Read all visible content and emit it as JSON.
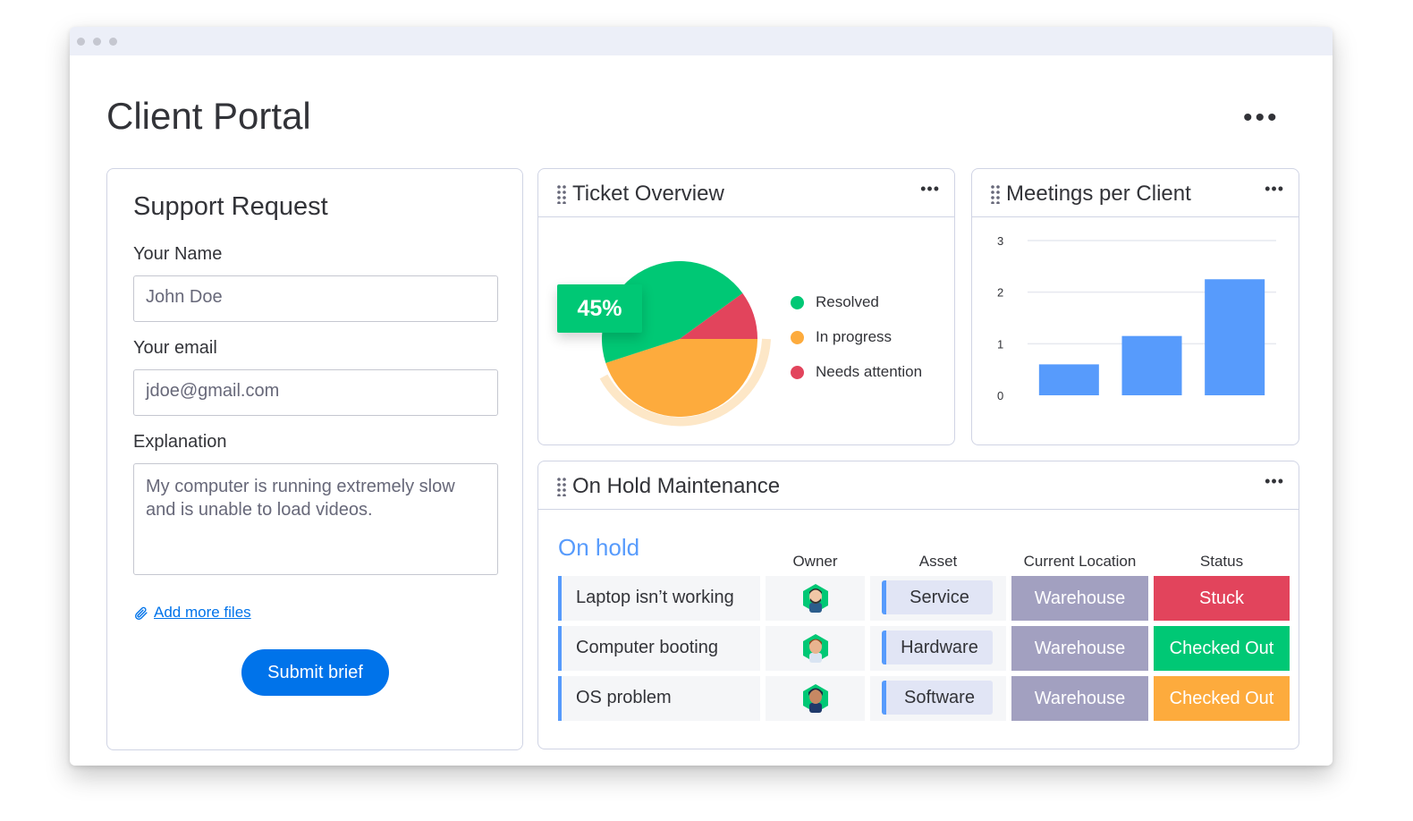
{
  "page": {
    "title": "Client Portal"
  },
  "support_form": {
    "title": "Support Request",
    "name_label": "Your Name",
    "name_value": "John Doe",
    "email_label": "Your email",
    "email_value": "jdoe@gmail.com",
    "explanation_label": "Explanation",
    "explanation_value": "My computer is running extremely slow and is unable to load videos.",
    "add_files_label": "Add more files",
    "submit_label": "Submit brief"
  },
  "ticket_overview": {
    "title": "Ticket Overview",
    "highlight": "45%",
    "legend": [
      {
        "label": "Resolved",
        "color": "#00c875"
      },
      {
        "label": "In progress",
        "color": "#fdab3d"
      },
      {
        "label": "Needs attention",
        "color": "#e2445c"
      }
    ]
  },
  "meetings_per_client": {
    "title": "Meetings per Client"
  },
  "chart_data": [
    {
      "type": "pie",
      "labels": [
        "Resolved",
        "In progress",
        "Needs attention"
      ],
      "values": [
        45,
        45,
        10
      ],
      "colors": [
        "#00c875",
        "#fdab3d",
        "#e2445c"
      ]
    },
    {
      "type": "bar",
      "categories": [
        "",
        "",
        ""
      ],
      "values": [
        0.6,
        1.15,
        2.25
      ],
      "ylim": [
        0,
        3
      ],
      "yticks": [
        0,
        1,
        2,
        3
      ],
      "grid": true,
      "color": "#579bfc"
    }
  ],
  "on_hold": {
    "title": "On Hold Maintenance",
    "group_title": "On hold",
    "columns": {
      "owner": "Owner",
      "asset": "Asset",
      "location": "Current Location",
      "status": "Status"
    },
    "rows": [
      {
        "name": "Laptop isn’t working",
        "asset": "Service",
        "location": "Warehouse",
        "status": "Stuck",
        "status_color": "#e2445c",
        "avatar": "avatar-1"
      },
      {
        "name": "Computer booting",
        "asset": "Hardware",
        "location": "Warehouse",
        "status": "Checked Out",
        "status_color": "#00c875",
        "avatar": "avatar-2"
      },
      {
        "name": "OS problem",
        "asset": "Software",
        "location": "Warehouse",
        "status": "Checked Out",
        "status_color": "#fdab3d",
        "avatar": "avatar-3"
      }
    ]
  }
}
